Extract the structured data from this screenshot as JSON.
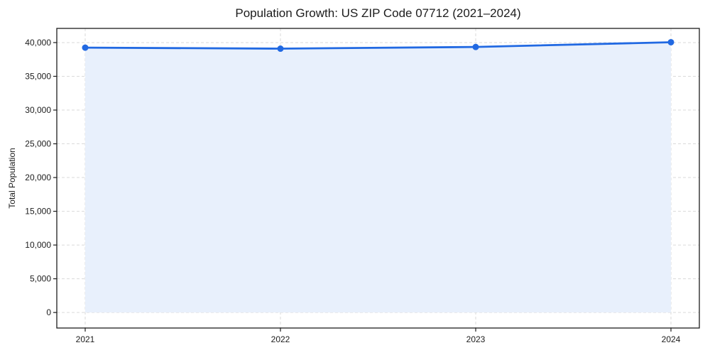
{
  "figure": {
    "title": "Population Growth: US ZIP Code 07712 (2021–2024)"
  },
  "chart_data": {
    "type": "line",
    "title": "Population Growth: US ZIP Code 07712 (2021–2024)",
    "xlabel": "",
    "ylabel": "Total Population",
    "x": [
      "2021",
      "2022",
      "2023",
      "2024"
    ],
    "x_tick_labels": [
      "2021",
      "2022",
      "2023",
      "2024"
    ],
    "series": [
      {
        "name": "Total Population",
        "values": [
          39250,
          39100,
          39350,
          40050
        ]
      }
    ],
    "y_ticks": [
      0,
      5000,
      10000,
      15000,
      20000,
      25000,
      30000,
      35000,
      40000
    ],
    "y_tick_labels": [
      "0",
      "5,000",
      "10,000",
      "15,000",
      "20,000",
      "25,000",
      "30,000",
      "35,000",
      "40,000"
    ],
    "ylim": [
      -2300,
      42100
    ],
    "grid": true,
    "grid_style": "dashed",
    "legend_position": "none",
    "marker": "circle",
    "area_fill": true,
    "colors": {
      "line": "#2169e2",
      "marker": "#2169e2",
      "area": "#e8f0fc",
      "grid": "#dadada",
      "spine": "#1c1c1c",
      "text": "#1c1c1c"
    }
  }
}
